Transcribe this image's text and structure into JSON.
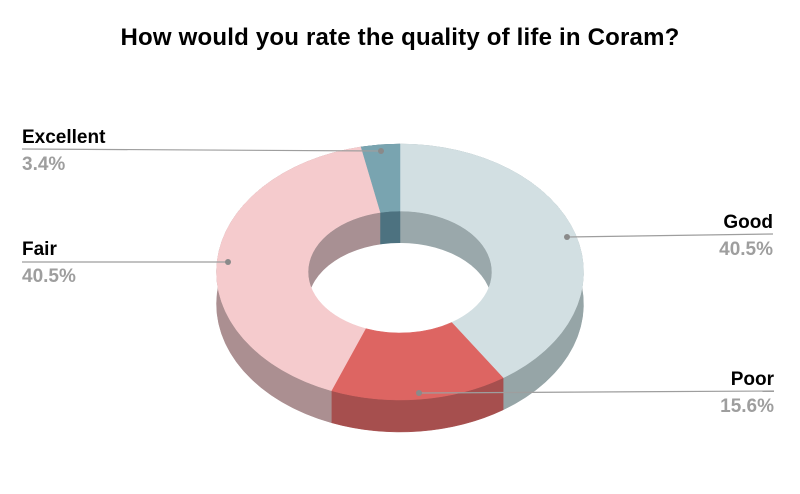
{
  "chart_data": {
    "type": "pie",
    "subtype": "3d-donut",
    "title": "How would you rate the quality of life in Coram?",
    "donut_hole": true,
    "legend_position": "callouts",
    "background": "#ffffff",
    "title_color": "#000000",
    "label_color": "#000000",
    "percent_color": "#9e9e9e",
    "leader_line_color": "#9e9e9e",
    "leader_dot_color": "#8a8a8a",
    "start_angle_deg": 0,
    "clockwise": true,
    "slices": [
      {
        "label": "Good",
        "value": 40.5,
        "pct_label": "40.5%",
        "color": "#d2dfe2",
        "side_color": "#96a5a7",
        "inner_wall_color": "#9aa8ab"
      },
      {
        "label": "Poor",
        "value": 15.6,
        "pct_label": "15.6%",
        "color": "#dd6562",
        "side_color": "#a64f4e",
        "inner_wall_color": "#a6504f"
      },
      {
        "label": "Fair",
        "value": 40.5,
        "pct_label": "40.5%",
        "color": "#f5cbcd",
        "side_color": "#ab8f91",
        "inner_wall_color": "#a89093"
      },
      {
        "label": "Excellent",
        "value": 3.4,
        "pct_label": "3.4%",
        "color": "#79a4b0",
        "side_color": "#4d7280",
        "inner_wall_color": "#4d7280"
      }
    ]
  }
}
